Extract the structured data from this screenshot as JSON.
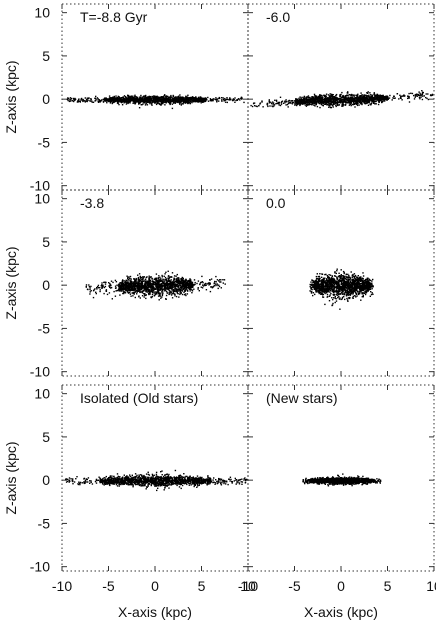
{
  "chart_data": {
    "type": "scatter",
    "xlabel": "X-axis (kpc)",
    "ylabel": "Z-axis (kpc)",
    "xlim": [
      -10,
      10
    ],
    "ylim": [
      -10.5,
      11
    ],
    "x_ticks": [
      "-10",
      "-5",
      "0",
      "5",
      "10"
    ],
    "y_ticks": [
      "10",
      "5",
      "0",
      "-5",
      "-10"
    ],
    "grid": false,
    "panels": [
      {
        "id": "p1",
        "label": "T=-8.8 Gyr",
        "row": 0,
        "col": 0,
        "distribution": {
          "half_length_x": 9.5,
          "core_half_length_x": 5.5,
          "half_thickness_z": 0.55,
          "warp": 0.0
        }
      },
      {
        "id": "p2",
        "label": "-6.0",
        "row": 0,
        "col": 1,
        "distribution": {
          "half_length_x": 9.8,
          "core_half_length_x": 5.0,
          "half_thickness_z": 0.75,
          "warp": 0.6
        }
      },
      {
        "id": "p3",
        "label": "-3.8",
        "row": 1,
        "col": 0,
        "distribution": {
          "half_length_x": 7.5,
          "core_half_length_x": 4.0,
          "half_thickness_z": 1.3,
          "warp": 0.3
        }
      },
      {
        "id": "p4",
        "label": "0.0",
        "row": 1,
        "col": 1,
        "distribution": {
          "half_length_x": 3.4,
          "core_half_length_x": 3.0,
          "half_thickness_z": 1.7,
          "warp": 0.0
        }
      },
      {
        "id": "p5",
        "label": "Isolated (Old stars)",
        "row": 2,
        "col": 0,
        "distribution": {
          "half_length_x": 9.8,
          "core_half_length_x": 6.0,
          "half_thickness_z": 0.75,
          "warp": 0.0
        }
      },
      {
        "id": "p6",
        "label": "(New stars)",
        "row": 2,
        "col": 1,
        "distribution": {
          "half_length_x": 4.2,
          "core_half_length_x": 3.5,
          "half_thickness_z": 0.45,
          "warp": 0.0
        }
      }
    ]
  }
}
